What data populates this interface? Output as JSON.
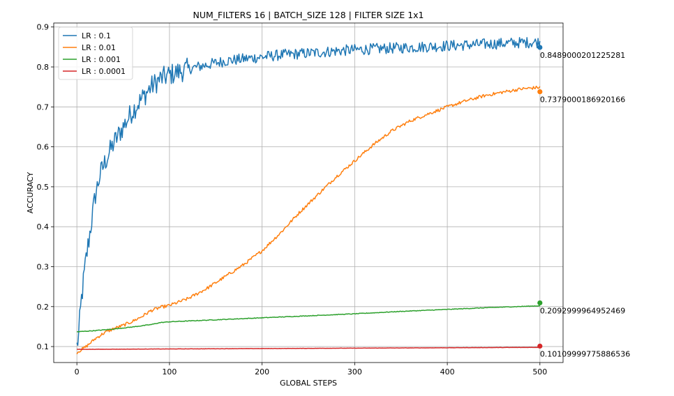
{
  "chart_data": {
    "type": "line",
    "title": "NUM_FILTERS 16 | BATCH_SIZE 128 | FILTER SIZE 1x1",
    "xlabel": "GLOBAL STEPS",
    "ylabel": "ACCURACY",
    "xlim": [
      -25,
      525
    ],
    "ylim": [
      0.06,
      0.91
    ],
    "xticks": [
      0,
      100,
      200,
      300,
      400,
      500
    ],
    "yticks": [
      0.1,
      0.2,
      0.3,
      0.4,
      0.5,
      0.6,
      0.7,
      0.8,
      0.9
    ],
    "xtick_labels": [
      "0",
      "100",
      "200",
      "300",
      "400",
      "500"
    ],
    "ytick_labels": [
      "0.1",
      "0.2",
      "0.3",
      "0.4",
      "0.5",
      "0.6",
      "0.7",
      "0.8",
      "0.9"
    ],
    "grid": true,
    "legend_position": "top-left",
    "series": [
      {
        "name": "LR : 0.1",
        "color": "#1f77b4",
        "x": [
          0,
          2,
          5,
          10,
          15,
          20,
          25,
          30,
          40,
          50,
          60,
          70,
          80,
          90,
          100,
          120,
          140,
          160,
          180,
          200,
          220,
          240,
          260,
          280,
          300,
          320,
          340,
          360,
          380,
          400,
          420,
          440,
          460,
          480,
          500
        ],
        "y": [
          0.1,
          0.13,
          0.22,
          0.32,
          0.4,
          0.48,
          0.53,
          0.56,
          0.61,
          0.65,
          0.69,
          0.72,
          0.75,
          0.77,
          0.78,
          0.795,
          0.805,
          0.815,
          0.82,
          0.825,
          0.83,
          0.833,
          0.836,
          0.84,
          0.843,
          0.845,
          0.847,
          0.849,
          0.851,
          0.853,
          0.855,
          0.857,
          0.859,
          0.861,
          0.862
        ],
        "noise": 0.014,
        "final_value": 0.848900020122528,
        "final_label": "0.8489000201225281"
      },
      {
        "name": "LR : 0.01",
        "color": "#ff7f0e",
        "x": [
          0,
          10,
          20,
          30,
          40,
          50,
          60,
          70,
          80,
          90,
          100,
          120,
          140,
          160,
          180,
          200,
          220,
          240,
          260,
          280,
          300,
          320,
          340,
          360,
          380,
          400,
          420,
          440,
          460,
          480,
          500
        ],
        "y": [
          0.085,
          0.1,
          0.12,
          0.135,
          0.145,
          0.153,
          0.163,
          0.175,
          0.19,
          0.198,
          0.203,
          0.22,
          0.245,
          0.275,
          0.305,
          0.34,
          0.385,
          0.435,
          0.48,
          0.525,
          0.565,
          0.605,
          0.64,
          0.665,
          0.683,
          0.7,
          0.715,
          0.728,
          0.737,
          0.745,
          0.749
        ],
        "noise": 0.004,
        "final_value": 0.737900018692017,
        "final_label": "0.7379000186920166"
      },
      {
        "name": "LR : 0.001",
        "color": "#2ca02c",
        "x": [
          0,
          20,
          40,
          60,
          80,
          90,
          100,
          150,
          200,
          250,
          300,
          350,
          400,
          450,
          500
        ],
        "y": [
          0.137,
          0.14,
          0.144,
          0.149,
          0.155,
          0.16,
          0.162,
          0.167,
          0.172,
          0.177,
          0.182,
          0.188,
          0.193,
          0.198,
          0.202
        ],
        "noise": 0.0008,
        "final_value": 0.209299996495247,
        "final_label": "0.2092999964952469"
      },
      {
        "name": "LR : 0.0001",
        "color": "#d62728",
        "x": [
          0,
          100,
          200,
          300,
          400,
          500
        ],
        "y": [
          0.093,
          0.094,
          0.095,
          0.096,
          0.097,
          0.098
        ],
        "noise": 0.0003,
        "final_value": 0.101099997758865,
        "final_label": "0.10109999775886536"
      }
    ]
  }
}
